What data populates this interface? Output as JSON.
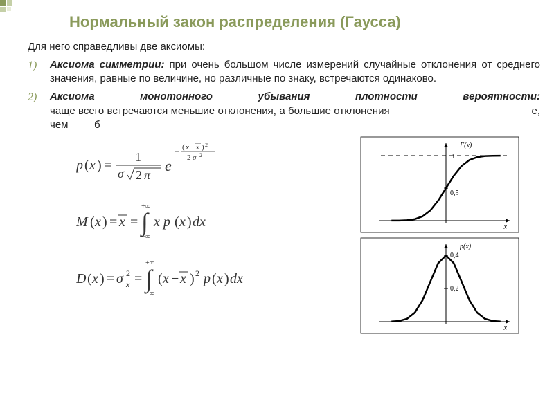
{
  "title": {
    "text": "Нормальный закон распределения (Гаусса)",
    "color": "#8a9a5b"
  },
  "intro": "Для него справедливы две аксиомы:",
  "axioms": [
    {
      "num": "1)",
      "title": "Аксиома симметрии:",
      "text": " при очень большом числе измерений случайные отклонения от среднего значения, равные по величине, но различные по знаку, встречаются одинаково."
    },
    {
      "num": "2)",
      "title": "Аксиома монотонного убывания плотности вероятности:",
      "text": " чаще всего встречаются меньшие отклонения, а большие отклонения                                               е, чем         б"
    }
  ],
  "axiom_num_color": "#8a9a5b",
  "cdf_chart": {
    "type": "line",
    "xlabel": "x",
    "ylabel": "F(x)",
    "asymptote_y": 1,
    "mid_label": "0,5",
    "top_label": "1",
    "curve_color": "#000000",
    "line_width": 2.5,
    "axis_color": "#000000",
    "dash_color": "#000000",
    "background": "#ffffff",
    "points": [
      [
        -3.5,
        0.001
      ],
      [
        -3,
        0.0013
      ],
      [
        -2.5,
        0.0062
      ],
      [
        -2,
        0.0228
      ],
      [
        -1.5,
        0.0668
      ],
      [
        -1,
        0.1587
      ],
      [
        -0.5,
        0.3085
      ],
      [
        0,
        0.5
      ],
      [
        0.5,
        0.6915
      ],
      [
        1,
        0.8413
      ],
      [
        1.5,
        0.9332
      ],
      [
        2,
        0.9772
      ],
      [
        2.5,
        0.9938
      ],
      [
        3,
        0.9987
      ],
      [
        3.5,
        0.999
      ]
    ],
    "xlim": [
      -4,
      4
    ],
    "ylim": [
      0,
      1.15
    ]
  },
  "pdf_chart": {
    "type": "line",
    "xlabel": "x",
    "ylabel": "p(x)",
    "ytick_labels": [
      "0,2",
      "0,4"
    ],
    "ytick_values": [
      0.2,
      0.4
    ],
    "curve_color": "#000000",
    "line_width": 2.5,
    "axis_color": "#000000",
    "background": "#ffffff",
    "points": [
      [
        -3.5,
        0.0009
      ],
      [
        -3,
        0.0044
      ],
      [
        -2.5,
        0.0175
      ],
      [
        -2,
        0.054
      ],
      [
        -1.5,
        0.1295
      ],
      [
        -1,
        0.242
      ],
      [
        -0.5,
        0.3521
      ],
      [
        0,
        0.3989
      ],
      [
        0.5,
        0.3521
      ],
      [
        1,
        0.242
      ],
      [
        1.5,
        0.1295
      ],
      [
        2,
        0.054
      ],
      [
        2.5,
        0.0175
      ],
      [
        3,
        0.0044
      ],
      [
        3.5,
        0.0009
      ]
    ],
    "xlim": [
      -4,
      4
    ],
    "ylim": [
      0,
      0.45
    ]
  },
  "deco_color": "#8a9a5b"
}
